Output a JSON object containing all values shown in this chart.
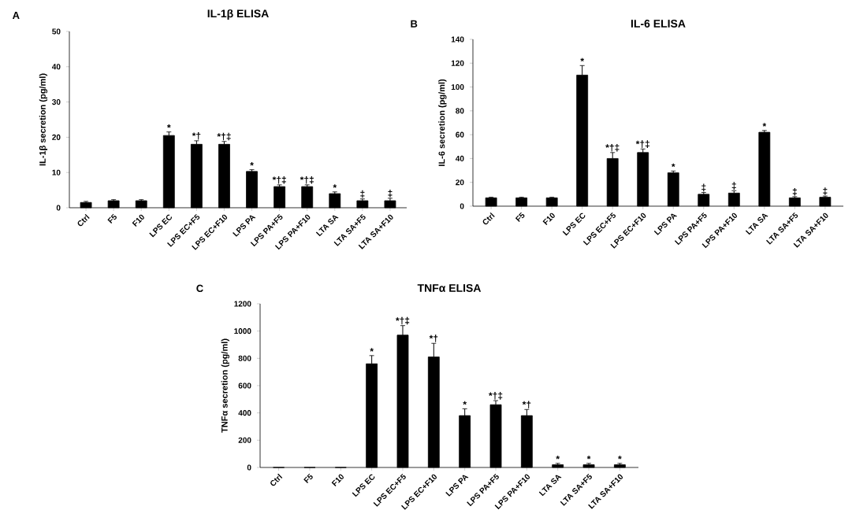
{
  "chart_data": [
    {
      "type": "bar",
      "title": "IL-1β ELISA",
      "ylabel": "IL-1β secretion (pg/ml)",
      "color": "#000000",
      "categories": [
        "Ctrl",
        "F5",
        "F10",
        "LPS EC",
        "LPS EC+F5",
        "LPS EC+F10",
        "LPS PA",
        "LPS PA+F5",
        "LPS PA+F10",
        "LTA SA",
        "LTA SA+F5",
        "LTA SA+F10"
      ],
      "values": [
        1.5,
        2,
        2,
        20.5,
        18,
        18,
        10.3,
        6,
        6,
        4,
        2,
        2
      ],
      "errors": [
        0.3,
        0.3,
        0.3,
        1,
        1,
        0.8,
        0.5,
        0.5,
        0.5,
        0.5,
        0.5,
        0.7
      ],
      "ylim": [
        0,
        50
      ],
      "yticks": [
        0,
        10,
        20,
        30,
        40,
        50
      ],
      "annotations": [
        "A",
        {
          "text": "*",
          "x": "LPS EC",
          "y": 21.5
        },
        {
          "text": "*†",
          "x": "LPS EC+F5",
          "y": 19
        },
        {
          "text": "*†‡",
          "x": "LPS EC+F10",
          "y": 18.8
        },
        {
          "text": "*",
          "x": "LPS PA",
          "y": 10.8
        },
        {
          "text": "*†‡",
          "x": "LPS PA+F5",
          "y": 6.5
        },
        {
          "text": "*†‡",
          "x": "LPS PA+F10",
          "y": 6.5
        },
        {
          "text": "*",
          "x": "LTA SA",
          "y": 4.5
        },
        {
          "text": "‡",
          "x": "LTA SA+F5",
          "y": 2.5
        },
        {
          "text": "‡",
          "x": "LTA SA+F10",
          "y": 2.7
        }
      ]
    },
    {
      "type": "bar",
      "title": "IL-6 ELISA",
      "ylabel": "IL-6 secretion (pg/ml)",
      "color": "#000000",
      "categories": [
        "Ctrl",
        "F5",
        "F10",
        "LPS EC",
        "LPS EC+F5",
        "LPS EC+F10",
        "LPS PA",
        "LPS PA+F5",
        "LPS PA+F10",
        "LTA SA",
        "LTA SA+F5",
        "LTA SA+F10"
      ],
      "values": [
        7,
        7,
        7,
        110,
        40,
        45,
        28,
        10,
        11,
        62,
        7,
        7.5
      ],
      "errors": [
        0.5,
        0.5,
        0.5,
        8,
        5,
        3,
        1.5,
        1.5,
        2,
        1.5,
        1,
        1
      ],
      "ylim": [
        0,
        140
      ],
      "yticks": [
        0,
        20,
        40,
        60,
        80,
        100,
        120,
        140
      ],
      "annotations": [
        "B",
        {
          "text": "*",
          "x": "LPS EC",
          "y": 118
        },
        {
          "text": "*†‡",
          "x": "LPS EC+F5",
          "y": 45
        },
        {
          "text": "*†‡",
          "x": "LPS EC+F10",
          "y": 48
        },
        {
          "text": "*",
          "x": "LPS PA",
          "y": 29.5
        },
        {
          "text": "‡",
          "x": "LPS PA+F5",
          "y": 11.5
        },
        {
          "text": "‡",
          "x": "LPS PA+F10",
          "y": 13
        },
        {
          "text": "*",
          "x": "LTA SA",
          "y": 63.5
        },
        {
          "text": "‡",
          "x": "LTA SA+F5",
          "y": 8
        },
        {
          "text": "‡",
          "x": "LTA SA+F10",
          "y": 8.5
        }
      ]
    },
    {
      "type": "bar",
      "title": "TNFα ELISA",
      "ylabel": "TNFα secretion (pg/ml)",
      "color": "#000000",
      "categories": [
        "Ctrl",
        "F5",
        "F10",
        "LPS EC",
        "LPS EC+F5",
        "LPS EC+F10",
        "LPS PA",
        "LPS PA+F5",
        "LPS PA+F10",
        "LTA SA",
        "LTA SA+F5",
        "LTA SA+F10"
      ],
      "values": [
        0,
        0,
        0,
        760,
        970,
        810,
        380,
        460,
        380,
        20,
        20,
        20
      ],
      "errors": [
        null,
        null,
        null,
        60,
        70,
        100,
        50,
        30,
        45,
        10,
        10,
        10
      ],
      "ylim": [
        0,
        1200
      ],
      "yticks": [
        0,
        200,
        400,
        600,
        800,
        1000,
        1200
      ],
      "annotations": [
        "C",
        {
          "text": "*",
          "x": "LPS EC",
          "y": 820
        },
        {
          "text": "*†‡",
          "x": "LPS EC+F5",
          "y": 1040
        },
        {
          "text": "*†",
          "x": "LPS EC+F10",
          "y": 910
        },
        {
          "text": "*",
          "x": "LPS PA",
          "y": 430
        },
        {
          "text": "*†‡",
          "x": "LPS PA+F5",
          "y": 490
        },
        {
          "text": "*†",
          "x": "LPS PA+F10",
          "y": 425
        },
        {
          "text": "*",
          "x": "LTA SA",
          "y": 30
        },
        {
          "text": "*",
          "x": "LTA SA+F5",
          "y": 30
        },
        {
          "text": "*",
          "x": "LTA SA+F10",
          "y": 30
        }
      ]
    }
  ]
}
